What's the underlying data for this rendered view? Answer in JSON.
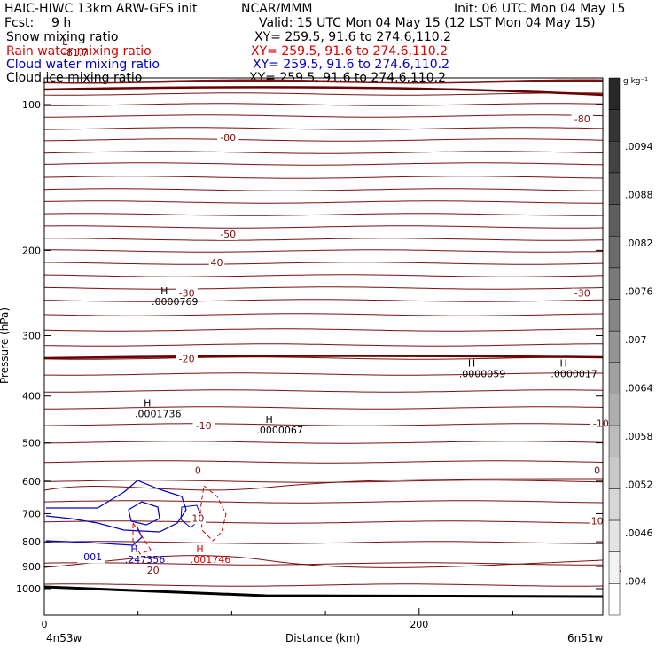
{
  "header": {
    "model": "HAIC-HIWC 13km ARW-GFS init",
    "org": "NCAR/MMM",
    "init": "Init: 06 UTC Mon 04 May 15",
    "fcst_label": "Fcst:",
    "fcst_value": "9 h",
    "valid": "Valid: 15 UTC Mon 04 May 15 (12 LST Mon 04 May 15)"
  },
  "fields": [
    {
      "name": "Snow mixing ratio",
      "xy": "XY= 259.5, 91.6 to 274.6,110.2",
      "color": "#000000"
    },
    {
      "name": "Rain water mixing ratio",
      "xy": "XY= 259.5, 91.6 to 274.6,110.2",
      "color": "#dd0000"
    },
    {
      "name": "Cloud water mixing ratio",
      "xy": "XY= 259.5, 91.6 to 274.6,110.2",
      "color": "#0000cc"
    },
    {
      "name": "Cloud ice mixing ratio",
      "xy": "XY= 259.5, 91.6 to 274.6,110.2",
      "color": "#000000"
    }
  ],
  "colorbar": {
    "unit": "g kg⁻¹",
    "labels": [
      ".0094",
      ".0088",
      ".0082",
      ".0076",
      ".007",
      ".0064",
      ".0058",
      ".0052",
      ".0046",
      ".004"
    ]
  },
  "chart_data": {
    "type": "contour-cross-section",
    "xlabel": "Distance (km)",
    "ylabel": "Pressure (hPa)",
    "x_ticks": [
      0,
      200
    ],
    "xlim": [
      0,
      298
    ],
    "y_ticks": [
      100,
      200,
      300,
      400,
      500,
      600,
      700,
      800,
      900,
      1000
    ],
    "ylim": [
      50,
      1050
    ],
    "y_scale": "log-pressure",
    "x_endpoints": {
      "left": "4n53w",
      "right": "6n51w"
    },
    "temperature_contour_labels": [
      {
        "text": "-80",
        "x": 98,
        "p": 117
      },
      {
        "text": "-80",
        "x": 287,
        "p": 107
      },
      {
        "text": "-50",
        "x": 98,
        "p": 185
      },
      {
        "text": "40",
        "x": 92,
        "p": 212
      },
      {
        "text": "-30",
        "x": 76,
        "p": 245
      },
      {
        "text": "-30",
        "x": 287,
        "p": 245
      },
      {
        "text": "-20",
        "x": 76,
        "p": 335
      },
      {
        "text": "-10",
        "x": 85,
        "p": 460
      },
      {
        "text": "-10",
        "x": 297,
        "p": 455
      },
      {
        "text": "0",
        "x": 82,
        "p": 570
      },
      {
        "text": "0",
        "x": 295,
        "p": 570
      },
      {
        "text": "10",
        "x": 82,
        "p": 715
      },
      {
        "text": "10",
        "x": 295,
        "p": 725
      },
      {
        "text": "20",
        "x": 305,
        "p": 910
      },
      {
        "text": "20",
        "x": 58,
        "p": 915
      }
    ],
    "cloud_water_contour_labels": [
      {
        "text": ".001",
        "x": 25,
        "p": 860
      }
    ],
    "extrema": [
      {
        "type": "L",
        "x": 11,
        "p": 78,
        "value": "-81.7",
        "color": "#880000"
      },
      {
        "type": "H",
        "x": 64,
        "p": 255,
        "value": ".0000769",
        "color": "#000000"
      },
      {
        "type": "H",
        "x": 55,
        "p": 435,
        "value": ".0001736",
        "color": "#000000"
      },
      {
        "type": "H",
        "x": 120,
        "p": 470,
        "value": ".0000067",
        "color": "#000000"
      },
      {
        "type": "H",
        "x": 228,
        "p": 360,
        "value": ".0000059",
        "color": "#000000"
      },
      {
        "type": "H",
        "x": 277,
        "p": 360,
        "value": ".0000017",
        "color": "#000000"
      },
      {
        "type": "H",
        "x": 48,
        "p": 870,
        "value": ".247356",
        "color": "#0000cc"
      },
      {
        "type": "H",
        "x": 83,
        "p": 870,
        "value": ".001746",
        "color": "#dd0000"
      }
    ]
  }
}
